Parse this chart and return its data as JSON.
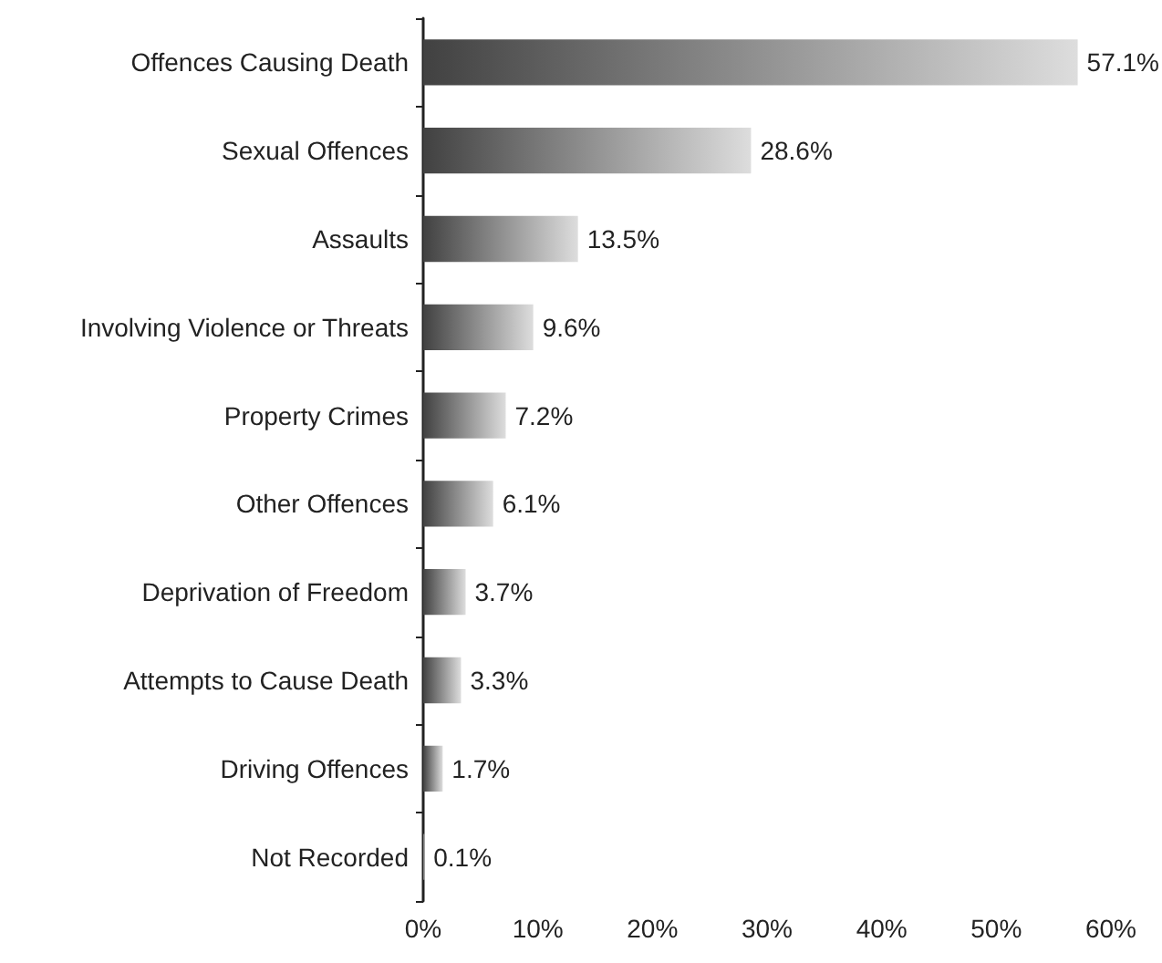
{
  "chart_data": {
    "type": "bar",
    "orientation": "horizontal",
    "categories": [
      "Offences Causing Death",
      "Sexual Offences",
      "Assaults",
      "Involving Violence or Threats",
      "Property Crimes",
      "Other Offences",
      "Deprivation of Freedom",
      "Attempts to Cause Death",
      "Driving Offences",
      "Not Recorded"
    ],
    "values": [
      57.1,
      28.6,
      13.5,
      9.6,
      7.2,
      6.1,
      3.7,
      3.3,
      1.7,
      0.1
    ],
    "value_labels": [
      "57.1%",
      "28.6%",
      "13.5%",
      "9.6%",
      "7.2%",
      "6.1%",
      "3.7%",
      "3.3%",
      "1.7%",
      "0.1%"
    ],
    "color": "#777777",
    "xlim": [
      0,
      60
    ],
    "xticks": [
      {
        "value": 0,
        "label": "0%"
      },
      {
        "value": 10,
        "label": "10%"
      },
      {
        "value": 20,
        "label": "20%"
      },
      {
        "value": 30,
        "label": "30%"
      },
      {
        "value": 40,
        "label": "40%"
      },
      {
        "value": 50,
        "label": "50%"
      },
      {
        "value": 60,
        "label": "60%"
      }
    ],
    "grid": false
  }
}
